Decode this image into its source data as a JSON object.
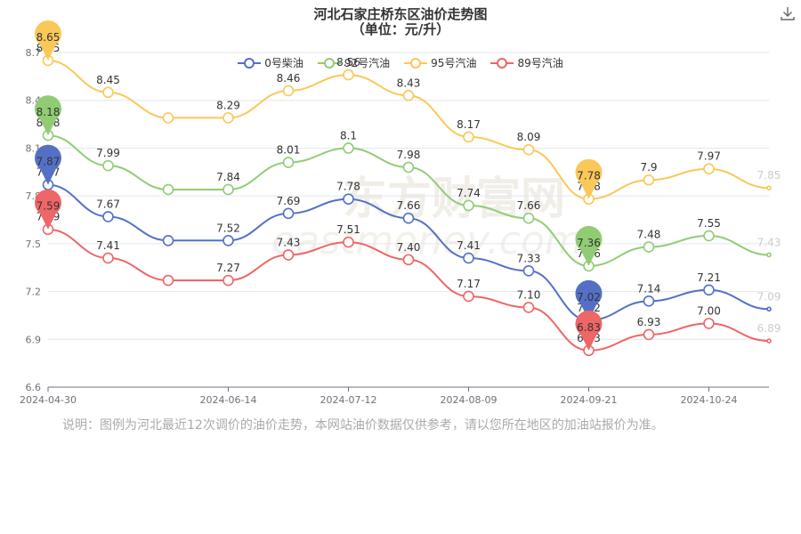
{
  "title": "河北石家庄桥东区油价走势图",
  "subtitle": "（单位：元/升）",
  "note": "说明：图例为河北最近12次调价的油价走势，本网站油价数据仅供参考，请以您所在地区的加油站报价为准。",
  "watermark": "东方财富网 eastmoney.com",
  "icons": {
    "download": "download-icon"
  },
  "chart_data": {
    "type": "line",
    "x": [
      "2024-04-30",
      "2024-05-16",
      "2024-05-30",
      "2024-06-14",
      "2024-06-28",
      "2024-07-12",
      "2024-07-26",
      "2024-08-09",
      "2024-08-23",
      "2024-09-21",
      "2024-10-09",
      "2024-10-24",
      "2024-11-07"
    ],
    "x_tick_labels": [
      "2024-04-30",
      "2024-06-14",
      "2024-07-12",
      "2024-08-09",
      "2024-09-21",
      "2024-10-24"
    ],
    "ylim": [
      6.6,
      8.7
    ],
    "yticks": [
      "6.6",
      "6.9",
      "7.2",
      "7.5",
      "7.8",
      "8.1",
      "8.4",
      "8.7"
    ],
    "grid": true,
    "legend_position": "top",
    "series": [
      {
        "name": "0号柴油",
        "color": "#5470c6",
        "values": [
          7.87,
          7.67,
          7.52,
          7.52,
          7.69,
          7.78,
          7.66,
          7.41,
          7.33,
          7.02,
          7.14,
          7.21,
          7.09
        ],
        "labels": [
          "7.87",
          "7.67",
          "",
          "7.52",
          "7.69",
          "7.78",
          "7.66",
          "7.41",
          "7.33",
          "7.02",
          "7.14",
          "7.21",
          "7.09"
        ],
        "max_marker": "7.87",
        "min_marker": "7.02"
      },
      {
        "name": "92号汽油",
        "color": "#91cc75",
        "values": [
          8.18,
          7.99,
          7.84,
          7.84,
          8.01,
          8.1,
          7.98,
          7.74,
          7.66,
          7.36,
          7.48,
          7.55,
          7.43
        ],
        "labels": [
          "8.18",
          "7.99",
          "",
          "7.84",
          "8.01",
          "8.1",
          "7.98",
          "7.74",
          "7.66",
          "7.36",
          "7.48",
          "7.55",
          "7.43"
        ],
        "max_marker": "8.18",
        "min_marker": "7.36"
      },
      {
        "name": "95号汽油",
        "color": "#fac858",
        "values": [
          8.65,
          8.45,
          8.29,
          8.29,
          8.46,
          8.56,
          8.43,
          8.17,
          8.09,
          7.78,
          7.9,
          7.97,
          7.85
        ],
        "labels": [
          "8.65",
          "8.45",
          "",
          "8.29",
          "8.46",
          "8.56",
          "8.43",
          "8.17",
          "8.09",
          "7.78",
          "7.9",
          "7.97",
          "7.85"
        ],
        "max_marker": "8.65",
        "min_marker": "7.78"
      },
      {
        "name": "89号汽油",
        "color": "#ee6666",
        "values": [
          7.59,
          7.41,
          7.27,
          7.27,
          7.43,
          7.51,
          7.4,
          7.17,
          7.1,
          6.83,
          6.93,
          7.0,
          6.89
        ],
        "labels": [
          "7.59",
          "7.41",
          "",
          "7.27",
          "7.43",
          "7.51",
          "7.40",
          "7.17",
          "7.10",
          "6.83",
          "6.93",
          "7.00",
          "6.89"
        ],
        "max_marker": "7.59",
        "min_marker": "6.83"
      }
    ]
  }
}
